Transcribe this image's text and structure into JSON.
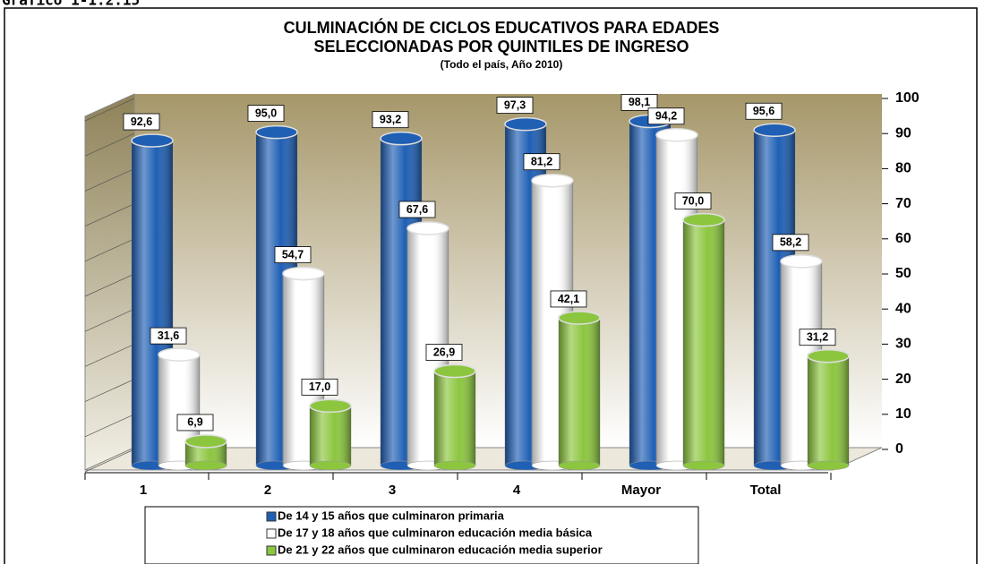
{
  "chart_data": {
    "type": "bar",
    "figure_label": "Gráfico 1-1.2.15",
    "title_lines": [
      "CULMINACIÓN DE CICLOS EDUCATIVOS PARA EDADES",
      "SELECCIONADAS POR QUINTILES DE INGRESO"
    ],
    "subtitle": "(Todo el país, Año 2010)",
    "categories": [
      "1",
      "2",
      "3",
      "4",
      "Mayor",
      "Total"
    ],
    "series": [
      {
        "name": "De 14 y 15 años que culminaron primaria",
        "color": "#1f5fb4",
        "values": [
          92.6,
          95.0,
          93.2,
          97.3,
          98.1,
          95.6
        ],
        "value_labels": [
          "92,6",
          "95,0",
          "93,2",
          "97,3",
          "98,1",
          "95,6"
        ]
      },
      {
        "name": "De 17 y 18 años que culminaron educación media básica",
        "color": "#ffffff",
        "values": [
          31.6,
          54.7,
          67.6,
          81.2,
          94.2,
          58.2
        ],
        "value_labels": [
          "31,6",
          "54,7",
          "67,6",
          "81,2",
          "94,2",
          "58,2"
        ]
      },
      {
        "name": "De 21 y 22 años que culminaron educación media superior",
        "color": "#8cc63f",
        "values": [
          6.9,
          17.0,
          26.9,
          42.1,
          70.0,
          31.2
        ],
        "value_labels": [
          "6,9",
          "17,0",
          "26,9",
          "42,1",
          "70,0",
          "31,2"
        ]
      }
    ],
    "ylim": [
      0,
      100
    ],
    "yticks": [
      0,
      10,
      20,
      30,
      40,
      50,
      60,
      70,
      80,
      90,
      100
    ],
    "grid": true,
    "legend": "bottom"
  }
}
